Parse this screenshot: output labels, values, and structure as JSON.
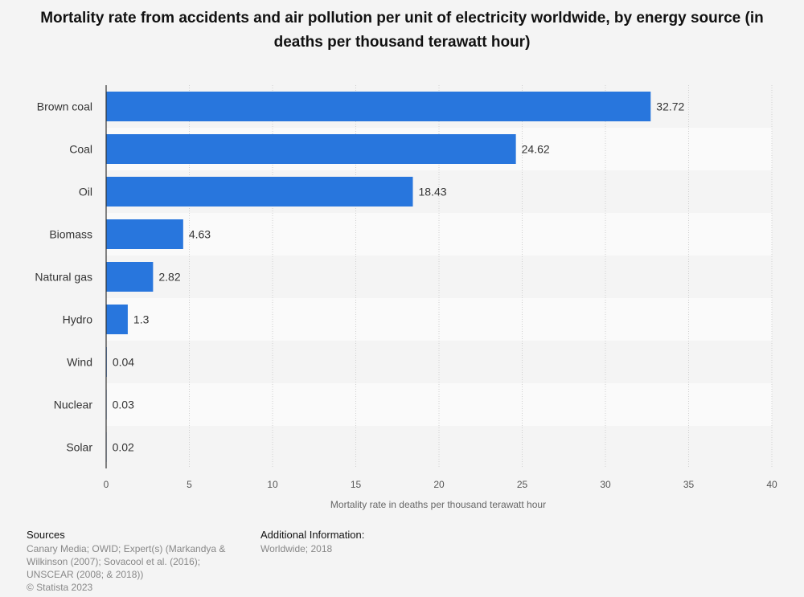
{
  "title": "Mortality rate from accidents and air pollution per unit of electricity worldwide, by energy source (in deaths per thousand terawatt hour)",
  "chart_data": {
    "type": "bar",
    "orientation": "horizontal",
    "categories": [
      "Brown coal",
      "Coal",
      "Oil",
      "Biomass",
      "Natural gas",
      "Hydro",
      "Wind",
      "Nuclear",
      "Solar"
    ],
    "values": [
      32.72,
      24.62,
      18.43,
      4.63,
      2.82,
      1.3,
      0.04,
      0.03,
      0.02
    ],
    "value_labels": [
      "32.72",
      "24.62",
      "18.43",
      "4.63",
      "2.82",
      "1.3",
      "0.04",
      "0.03",
      "0.02"
    ],
    "xlabel": "Mortality rate in deaths per thousand terawatt hour",
    "xlim": [
      0,
      40
    ],
    "xticks": [
      "0",
      "5",
      "10",
      "15",
      "20",
      "25",
      "30",
      "35",
      "40"
    ],
    "bar_color": "#2876dd",
    "grid": true
  },
  "footer": {
    "sources_heading": "Sources",
    "sources_text": "Canary Media; OWID; Expert(s) (Markandya & Wilkinson (2007); Sovacool et al. (2016); UNSCEAR (2008; & 2018))",
    "copyright": "© Statista 2023",
    "info_heading": "Additional Information:",
    "info_text": "Worldwide; 2018"
  }
}
